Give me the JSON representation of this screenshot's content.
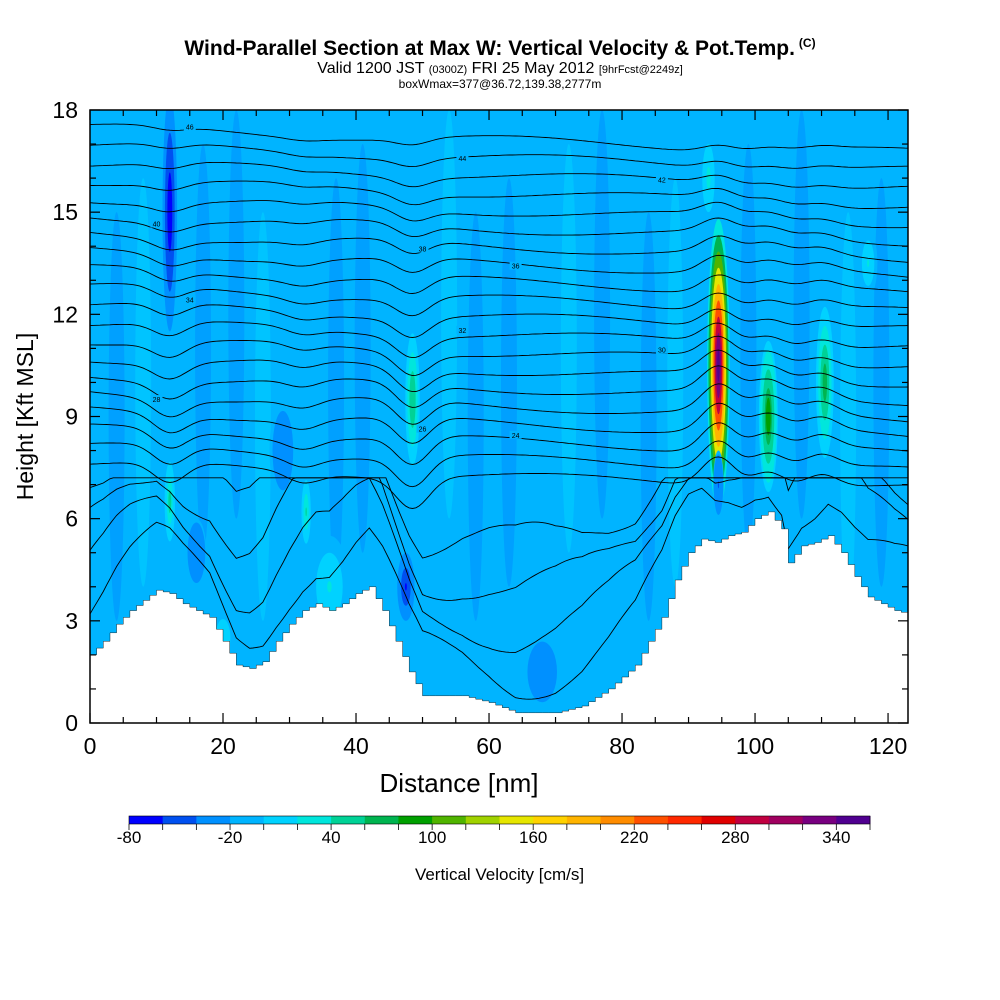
{
  "title": {
    "main": "Wind-Parallel Section at Max W: Vertical Velocity & Pot.Temp.",
    "copyright": "(C)",
    "valid_prefix": "Valid 1200 JST",
    "valid_utc": "(0300Z)",
    "valid_date": "FRI 25 May 2012",
    "forecast": "[9hrFcst@2249z]",
    "boxwmax": "boxWmax=377@36.72,139.38,2777m"
  },
  "colors": {
    "text": "#000000",
    "terrain": "#ffffff",
    "background_field": "#1ec8ff",
    "colorbar": [
      "#0000ff",
      "#0050f0",
      "#0090ff",
      "#00b4ff",
      "#00d2ff",
      "#00e6dc",
      "#00d296",
      "#00b450",
      "#00a000",
      "#50b400",
      "#a0d200",
      "#e6e600",
      "#ffd200",
      "#ffb400",
      "#ff8c00",
      "#ff5000",
      "#ff2800",
      "#e00000",
      "#c00040",
      "#a00060",
      "#780080",
      "#500090"
    ]
  },
  "colorbar": {
    "tick_labels": [
      "-80",
      "-20",
      "40",
      "100",
      "160",
      "220",
      "280",
      "340"
    ],
    "label": "Vertical Velocity [cm/s]"
  },
  "chart_data": {
    "type": "heatmap",
    "xlabel": "Distance [nm]",
    "ylabel": "Height [Kft MSL]",
    "xlim": [
      0,
      123
    ],
    "ylim": [
      0,
      18
    ],
    "x_ticks": [
      0,
      20,
      40,
      60,
      80,
      100,
      120
    ],
    "y_ticks": [
      0,
      3,
      6,
      9,
      12,
      15,
      18
    ],
    "color_range": [
      -80,
      370
    ],
    "colorbar_label": "Vertical Velocity [cm/s]",
    "background_value": -15,
    "max_w": {
      "value": 377,
      "x": 94.5,
      "y": 10
    },
    "features": [
      {
        "kind": "updraft",
        "x": 94.5,
        "y_center": 10.5,
        "x_halfwidth": 1.7,
        "y_halfheight": 4.3,
        "value": 377
      },
      {
        "kind": "updraft",
        "x": 102,
        "y_center": 9,
        "x_halfwidth": 1.6,
        "y_halfheight": 2.5,
        "value": 100
      },
      {
        "kind": "updraft",
        "x": 110.5,
        "y_center": 10,
        "x_halfwidth": 1.5,
        "y_halfheight": 2.5,
        "value": 75
      },
      {
        "kind": "updraft",
        "x": 48.5,
        "y_center": 9.5,
        "x_halfwidth": 1.4,
        "y_halfheight": 2.5,
        "value": 60
      },
      {
        "kind": "updraft",
        "x": 12,
        "y_center": 6.5,
        "x_halfwidth": 1.0,
        "y_halfheight": 1.5,
        "value": 50
      },
      {
        "kind": "updraft",
        "x": 32.5,
        "y_center": 6.2,
        "x_halfwidth": 0.9,
        "y_halfheight": 1.2,
        "value": 45
      },
      {
        "kind": "updraft",
        "x": 93,
        "y_center": 16,
        "x_halfwidth": 1.4,
        "y_halfheight": 1.5,
        "value": 30
      },
      {
        "kind": "updraft",
        "x": 117,
        "y_center": 13.5,
        "x_halfwidth": 1.4,
        "y_halfheight": 1.0,
        "value": 25
      },
      {
        "kind": "updraft",
        "x": 36,
        "y_center": 4,
        "x_halfwidth": 3.0,
        "y_halfheight": 1.5,
        "value": 25
      },
      {
        "kind": "updraft",
        "x": 20,
        "y_center": 2.5,
        "x_halfwidth": 2.0,
        "y_halfheight": 1.0,
        "value": 20
      },
      {
        "kind": "downdraft",
        "x": 12,
        "y_center": 15,
        "x_halfwidth": 1.1,
        "y_halfheight": 3.5,
        "value": -80
      },
      {
        "kind": "downdraft",
        "x": 47.5,
        "y_center": 4,
        "x_halfwidth": 1.3,
        "y_halfheight": 1.0,
        "value": -60
      },
      {
        "kind": "downdraft",
        "x": 94.5,
        "y_center": 7,
        "x_halfwidth": 0.8,
        "y_halfheight": 1.0,
        "value": -40
      },
      {
        "kind": "downdraft",
        "x": 68,
        "y_center": 1.5,
        "x_halfwidth": 2.5,
        "y_halfheight": 1.0,
        "value": -35
      },
      {
        "kind": "downdraft",
        "x": 16,
        "y_center": 5,
        "x_halfwidth": 1.5,
        "y_halfheight": 1.0,
        "value": -35
      },
      {
        "kind": "downdraft",
        "x": 29,
        "y_center": 8,
        "x_halfwidth": 2.0,
        "y_halfheight": 1.5,
        "value": -30
      }
    ],
    "terrain_height": [
      {
        "x": 0,
        "y": 2.0
      },
      {
        "x": 2,
        "y": 2.4
      },
      {
        "x": 4,
        "y": 2.9
      },
      {
        "x": 6,
        "y": 3.3
      },
      {
        "x": 8,
        "y": 3.6
      },
      {
        "x": 10,
        "y": 3.9
      },
      {
        "x": 12,
        "y": 3.8
      },
      {
        "x": 14,
        "y": 3.5
      },
      {
        "x": 16,
        "y": 3.3
      },
      {
        "x": 18,
        "y": 3.1
      },
      {
        "x": 20,
        "y": 2.4
      },
      {
        "x": 22,
        "y": 1.7
      },
      {
        "x": 24,
        "y": 1.6
      },
      {
        "x": 26,
        "y": 1.8
      },
      {
        "x": 28,
        "y": 2.4
      },
      {
        "x": 30,
        "y": 2.9
      },
      {
        "x": 32,
        "y": 3.3
      },
      {
        "x": 34,
        "y": 3.5
      },
      {
        "x": 36,
        "y": 3.3
      },
      {
        "x": 38,
        "y": 3.5
      },
      {
        "x": 40,
        "y": 3.8
      },
      {
        "x": 42,
        "y": 4.0
      },
      {
        "x": 44,
        "y": 3.3
      },
      {
        "x": 46,
        "y": 2.4
      },
      {
        "x": 48,
        "y": 1.5
      },
      {
        "x": 50,
        "y": 0.8
      },
      {
        "x": 56,
        "y": 0.8
      },
      {
        "x": 60,
        "y": 0.6
      },
      {
        "x": 64,
        "y": 0.3
      },
      {
        "x": 70,
        "y": 0.3
      },
      {
        "x": 74,
        "y": 0.5
      },
      {
        "x": 78,
        "y": 1.0
      },
      {
        "x": 82,
        "y": 1.7
      },
      {
        "x": 86,
        "y": 3.1
      },
      {
        "x": 88,
        "y": 4.2
      },
      {
        "x": 90,
        "y": 5.0
      },
      {
        "x": 92,
        "y": 5.4
      },
      {
        "x": 94,
        "y": 5.3
      },
      {
        "x": 96,
        "y": 5.5
      },
      {
        "x": 98,
        "y": 5.6
      },
      {
        "x": 100,
        "y": 6.0
      },
      {
        "x": 102,
        "y": 6.2
      },
      {
        "x": 104,
        "y": 5.7
      },
      {
        "x": 105,
        "y": 4.7
      },
      {
        "x": 107,
        "y": 5.2
      },
      {
        "x": 109,
        "y": 5.3
      },
      {
        "x": 111,
        "y": 5.5
      },
      {
        "x": 113,
        "y": 5.0
      },
      {
        "x": 115,
        "y": 4.3
      },
      {
        "x": 117,
        "y": 3.7
      },
      {
        "x": 119,
        "y": 3.5
      },
      {
        "x": 121,
        "y": 3.3
      },
      {
        "x": 123,
        "y": 3.2
      }
    ],
    "theta_contours": {
      "base_height": 7.6,
      "spacing": 0.52,
      "count": 20,
      "amplitude": 0.35
    },
    "contour_labels": [
      "46",
      "44",
      "42",
      "40",
      "38",
      "36",
      "34",
      "32",
      "30",
      "28",
      "26",
      "24"
    ]
  }
}
